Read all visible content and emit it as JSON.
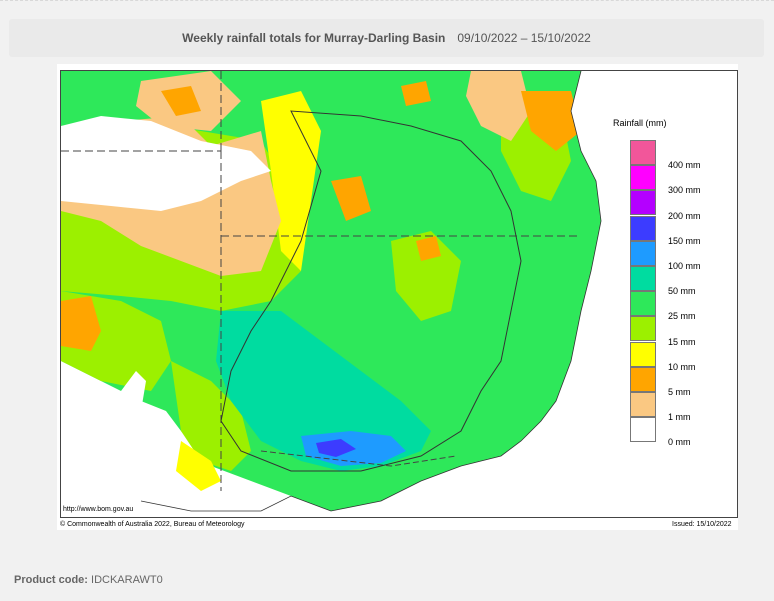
{
  "header": {
    "title": "Weekly rainfall totals for Murray-Darling Basin",
    "dates": "09/10/2022 – 15/10/2022"
  },
  "map": {
    "url": "http://www.bom.gov.au",
    "copyright": "© Commonwealth of Australia 2022, Bureau of Meteorology",
    "issued": "Issued: 15/10/2022"
  },
  "legend": {
    "title": "Rainfall (mm)",
    "items": [
      {
        "label": "",
        "color": "#f2569a"
      },
      {
        "label": "400 mm",
        "color": "#ff00ff"
      },
      {
        "label": "300 mm",
        "color": "#b400ff"
      },
      {
        "label": "200 mm",
        "color": "#3c3cff"
      },
      {
        "label": "150 mm",
        "color": "#1e9bff"
      },
      {
        "label": "100 mm",
        "color": "#00dca0"
      },
      {
        "label": "50 mm",
        "color": "#2ee85a"
      },
      {
        "label": "25 mm",
        "color": "#9cf000"
      },
      {
        "label": "15 mm",
        "color": "#ffff00"
      },
      {
        "label": "10 mm",
        "color": "#ffa500"
      },
      {
        "label": "5 mm",
        "color": "#fac882"
      },
      {
        "label": "1 mm",
        "color": "#ffffff"
      },
      {
        "label": "0 mm",
        "color": ""
      }
    ]
  },
  "footer": {
    "product_label": "Product code:",
    "product_code": "IDCKARAWT0"
  }
}
